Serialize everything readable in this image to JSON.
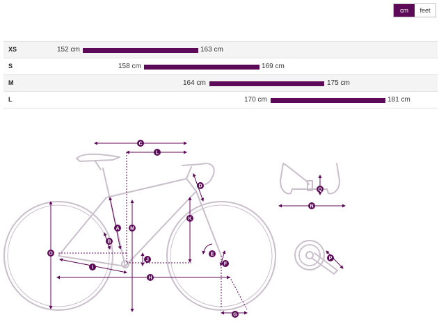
{
  "unit_toggle": {
    "cm": "cm",
    "feet": "feet",
    "selected": "cm"
  },
  "sizes": [
    {
      "size": "XS",
      "min": "152 cm",
      "max": "163 cm"
    },
    {
      "size": "S",
      "min": "158 cm",
      "max": "169 cm"
    },
    {
      "size": "M",
      "min": "164 cm",
      "max": "175 cm"
    },
    {
      "size": "L",
      "min": "170 cm",
      "max": "181 cm"
    }
  ],
  "geometry_labels": {
    "a": "A",
    "b": "B",
    "c": "C",
    "d": "D",
    "e": "E",
    "f": "F",
    "g": "G",
    "h": "H",
    "i": "I",
    "j": "J",
    "k": "K",
    "l": "L",
    "m": "M",
    "n": "N",
    "o": "O",
    "p": "P",
    "q": "Q"
  },
  "colors": {
    "accent": "#5c0a57",
    "frame": "#c9bfcb"
  }
}
